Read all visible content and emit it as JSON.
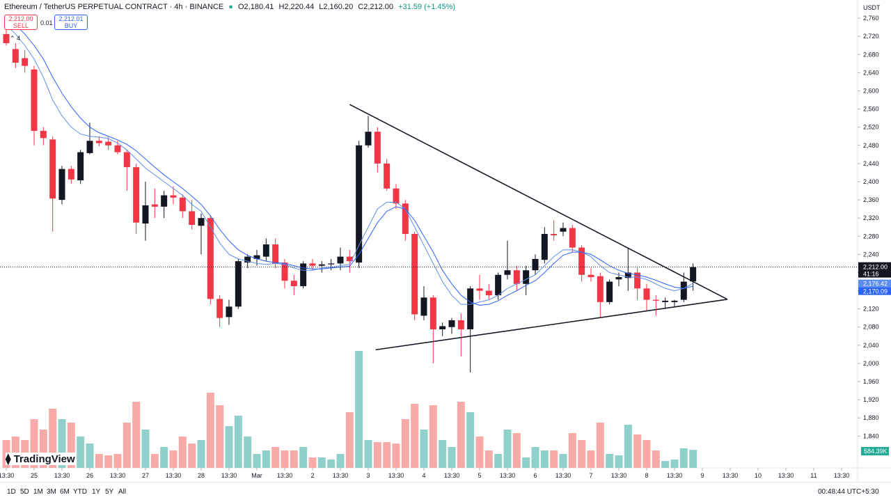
{
  "header": {
    "symbol": "Ethereum / TetherUS PERPETUAL CONTRACT · 4h · BINANCE",
    "ohlc": [
      "O2,180.41",
      "H2,220.44",
      "L2,160.20",
      "C2,212.00"
    ],
    "change": "+31.59 (+1.45%)"
  },
  "trade": {
    "sell_price": "2,212.00",
    "sell": "SELL",
    "qty": "0.01",
    "buy_price": "2,212.01",
    "buy": "BUY"
  },
  "indicator_count": "4",
  "brand": "TradingView",
  "toolbar": {
    "periods": [
      "1D",
      "5D",
      "1M",
      "3M",
      "6M",
      "YTD",
      "1Y",
      "5Y",
      "All"
    ],
    "clock": "00:48:44 UTC+5:30"
  },
  "chart_data": {
    "type": "candlestick",
    "currency": "USDT",
    "up_color": "#131722",
    "down_color": "#f23645",
    "volume_up_color": "#8fd1ca",
    "volume_down_color": "#f7aaa8",
    "open": [
      2725,
      2692,
      2672,
      2647,
      2512,
      2493,
      2360,
      2428,
      2403,
      2463,
      2490,
      2488,
      2480,
      2465,
      2432,
      2308,
      2350,
      2345,
      2370,
      2365,
      2335,
      2303,
      2320,
      2142,
      2102,
      2125,
      2222,
      2230,
      2235,
      2262,
      2222,
      2182,
      2170,
      2220,
      2215,
      2218,
      2220,
      2235,
      2222,
      2480,
      2510,
      2440,
      2385,
      2352,
      2285,
      2105,
      2145,
      2075,
      2080,
      2095,
      2075,
      2165,
      2160,
      2150,
      2195,
      2205,
      2175,
      2205,
      2228,
      2285,
      2290,
      2298,
      2255,
      2195,
      2192,
      2135,
      2185,
      2188,
      2200,
      2165,
      2140,
      2135,
      2135,
      2140,
      2180.41
    ],
    "high": [
      2745,
      2705,
      2690,
      2655,
      2520,
      2500,
      2435,
      2435,
      2470,
      2530,
      2500,
      2498,
      2490,
      2470,
      2440,
      2400,
      2385,
      2380,
      2390,
      2372,
      2360,
      2330,
      2325,
      2150,
      2140,
      2230,
      2240,
      2250,
      2275,
      2275,
      2230,
      2195,
      2225,
      2230,
      2225,
      2230,
      2255,
      2250,
      2490,
      2545,
      2520,
      2450,
      2395,
      2360,
      2290,
      2170,
      2150,
      2090,
      2100,
      2110,
      2170,
      2195,
      2175,
      2200,
      2270,
      2215,
      2215,
      2240,
      2300,
      2315,
      2310,
      2305,
      2260,
      2210,
      2200,
      2185,
      2200,
      2255,
      2210,
      2175,
      2150,
      2145,
      2140,
      2200,
      2220.44
    ],
    "low": [
      2700,
      2650,
      2640,
      2480,
      2480,
      2290,
      2350,
      2395,
      2395,
      2460,
      2478,
      2470,
      2460,
      2380,
      2285,
      2270,
      2320,
      2320,
      2350,
      2320,
      2295,
      2240,
      2130,
      2080,
      2085,
      2120,
      2210,
      2215,
      2225,
      2210,
      2165,
      2150,
      2165,
      2205,
      2200,
      2205,
      2205,
      2200,
      2210,
      2475,
      2420,
      2380,
      2340,
      2270,
      2095,
      2095,
      2000,
      2060,
      2065,
      2015,
      1980,
      2140,
      2140,
      2140,
      2185,
      2160,
      2150,
      2195,
      2220,
      2270,
      2280,
      2245,
      2180,
      2180,
      2100,
      2130,
      2170,
      2160,
      2140,
      2115,
      2105,
      2120,
      2125,
      2135,
      2160.2
    ],
    "close": [
      2705,
      2662,
      2655,
      2512,
      2496,
      2363,
      2428,
      2405,
      2465,
      2490,
      2485,
      2480,
      2465,
      2432,
      2310,
      2348,
      2345,
      2370,
      2365,
      2335,
      2305,
      2320,
      2142,
      2100,
      2125,
      2225,
      2235,
      2238,
      2262,
      2220,
      2182,
      2170,
      2220,
      2215,
      2218,
      2220,
      2235,
      2225,
      2480,
      2510,
      2440,
      2385,
      2352,
      2285,
      2108,
      2145,
      2075,
      2082,
      2095,
      2075,
      2165,
      2160,
      2150,
      2195,
      2205,
      2175,
      2205,
      2230,
      2285,
      2282,
      2298,
      2255,
      2195,
      2190,
      2135,
      2180,
      2190,
      2200,
      2165,
      2140,
      2138,
      2138,
      2138,
      2180,
      2212
    ],
    "volume": [
      900000,
      1012500,
      900000,
      1575000,
      1237500,
      1912500,
      1575000,
      1462500,
      1012500,
      787500,
      450000,
      405000,
      450000,
      1462500,
      2137500,
      1237500,
      450000,
      675000,
      562500,
      1012500,
      787500,
      900000,
      2430000,
      2025000,
      1350000,
      1687500,
      1012500,
      450000,
      562500,
      675000,
      562500,
      562500,
      675000,
      337500,
      337500,
      270000,
      450000,
      1800000,
      3780000,
      900000,
      832500,
      832500,
      787500,
      1575000,
      2070000,
      1237500,
      2025000,
      900000,
      675000,
      2137500,
      1800000,
      1012500,
      562500,
      450000,
      1237500,
      1125000,
      337500,
      675000,
      562500,
      562500,
      450000,
      1125000,
      900000,
      562500,
      1462500,
      450000,
      405000,
      1395000,
      1080000,
      900000,
      562500,
      225000,
      270000,
      630000,
      584390
    ],
    "volume_label": "584.39K",
    "volume_ylim": [
      0,
      15120000
    ],
    "series": [
      {
        "color": "#5b8def",
        "values": [
          2745,
          2725,
          2700,
          2670,
          2630,
          2580,
          2545,
          2520,
          2505,
          2500,
          2498,
          2495,
          2485,
          2470,
          2450,
          2430,
          2415,
          2400,
          2385,
          2370,
          2350,
          2335,
          2300,
          2265,
          2240,
          2230,
          2225,
          2220,
          2218,
          2220,
          2218,
          2210,
          2205,
          2205,
          2210,
          2212,
          2215,
          2218,
          2260,
          2300,
          2340,
          2355,
          2355,
          2340,
          2300,
          2260,
          2220,
          2180,
          2150,
          2130,
          2130,
          2135,
          2140,
          2150,
          2165,
          2175,
          2185,
          2195,
          2215,
          2235,
          2250,
          2250,
          2245,
          2235,
          2215,
          2200,
          2195,
          2190,
          2190,
          2185,
          2175,
          2165,
          2160,
          2165,
          2176.42
        ],
        "last_label": "2,176.42"
      },
      {
        "color": "#2962ff",
        "values": [
          2760,
          2745,
          2725,
          2700,
          2670,
          2630,
          2595,
          2565,
          2540,
          2520,
          2508,
          2500,
          2492,
          2482,
          2468,
          2450,
          2432,
          2415,
          2400,
          2385,
          2368,
          2350,
          2325,
          2295,
          2270,
          2250,
          2238,
          2230,
          2225,
          2222,
          2220,
          2215,
          2210,
          2208,
          2208,
          2210,
          2212,
          2214,
          2240,
          2275,
          2310,
          2335,
          2345,
          2340,
          2315,
          2280,
          2245,
          2205,
          2175,
          2150,
          2135,
          2128,
          2130,
          2138,
          2150,
          2160,
          2172,
          2182,
          2200,
          2220,
          2238,
          2245,
          2245,
          2240,
          2228,
          2215,
          2205,
          2198,
          2195,
          2190,
          2183,
          2175,
          2168,
          2165,
          2170.09
        ],
        "last_label": "2,170.09"
      }
    ],
    "last_price_label": "2,212.00",
    "countdown": "41:16",
    "trendlines": [
      [
        [
          37,
          2570
        ],
        [
          77.7,
          2141
        ]
      ],
      [
        [
          39.8,
          2030
        ],
        [
          77.7,
          2141
        ]
      ]
    ],
    "ylim": [
      1770,
      2800
    ],
    "grid": false,
    "yticks": [
      {
        "value": 1840,
        "label": "1,840"
      },
      {
        "value": 1880,
        "label": "1,880"
      },
      {
        "value": 1920,
        "label": "1,920"
      },
      {
        "value": 1960,
        "label": "1,960"
      },
      {
        "value": 2000,
        "label": "2,000"
      },
      {
        "value": 2040,
        "label": "2,040"
      },
      {
        "value": 2080,
        "label": "2,080"
      },
      {
        "value": 2120,
        "label": "2,120"
      },
      {
        "value": 2160,
        "label": "2,160"
      },
      {
        "value": 2200,
        "label": "2,200"
      },
      {
        "value": 2240,
        "label": "2,240"
      },
      {
        "value": 2280,
        "label": "2,280"
      },
      {
        "value": 2320,
        "label": "2,320"
      },
      {
        "value": 2360,
        "label": "2,360"
      },
      {
        "value": 2400,
        "label": "2,400"
      },
      {
        "value": 2440,
        "label": "2,440"
      },
      {
        "value": 2480,
        "label": "2,480"
      },
      {
        "value": 2520,
        "label": "2,520"
      },
      {
        "value": 2560,
        "label": "2,560"
      },
      {
        "value": 2600,
        "label": "2,600"
      },
      {
        "value": 2640,
        "label": "2,640"
      },
      {
        "value": 2680,
        "label": "2,680"
      },
      {
        "value": 2720,
        "label": "2,720"
      },
      {
        "value": 2760,
        "label": "2,760"
      }
    ],
    "xticks": [
      {
        "value": 0,
        "label": "13:30"
      },
      {
        "value": 3,
        "label": "25"
      },
      {
        "value": 6,
        "label": "13:30"
      },
      {
        "value": 9,
        "label": "26"
      },
      {
        "value": 12,
        "label": "13:30"
      },
      {
        "value": 15,
        "label": "27"
      },
      {
        "value": 18,
        "label": "13:30"
      },
      {
        "value": 21,
        "label": "28"
      },
      {
        "value": 24,
        "label": "13:30"
      },
      {
        "value": 27,
        "label": "Mar"
      },
      {
        "value": 30,
        "label": "13:30"
      },
      {
        "value": 33,
        "label": "2"
      },
      {
        "value": 36,
        "label": "13:30"
      },
      {
        "value": 39,
        "label": "3"
      },
      {
        "value": 42,
        "label": "13:30"
      },
      {
        "value": 45,
        "label": "4"
      },
      {
        "value": 48,
        "label": "13:30"
      },
      {
        "value": 51,
        "label": "5"
      },
      {
        "value": 54,
        "label": "13:30"
      },
      {
        "value": 57,
        "label": "6"
      },
      {
        "value": 60,
        "label": "13:30"
      },
      {
        "value": 63,
        "label": "7"
      },
      {
        "value": 66,
        "label": "13:30"
      },
      {
        "value": 69,
        "label": "8"
      },
      {
        "value": 72,
        "label": "13:30"
      },
      {
        "value": 75,
        "label": "9"
      },
      {
        "value": 78,
        "label": "13:30"
      },
      {
        "value": 81,
        "label": "10"
      },
      {
        "value": 84,
        "label": "13:30"
      },
      {
        "value": 87,
        "label": "11"
      },
      {
        "value": 90,
        "label": "13:30"
      }
    ]
  }
}
